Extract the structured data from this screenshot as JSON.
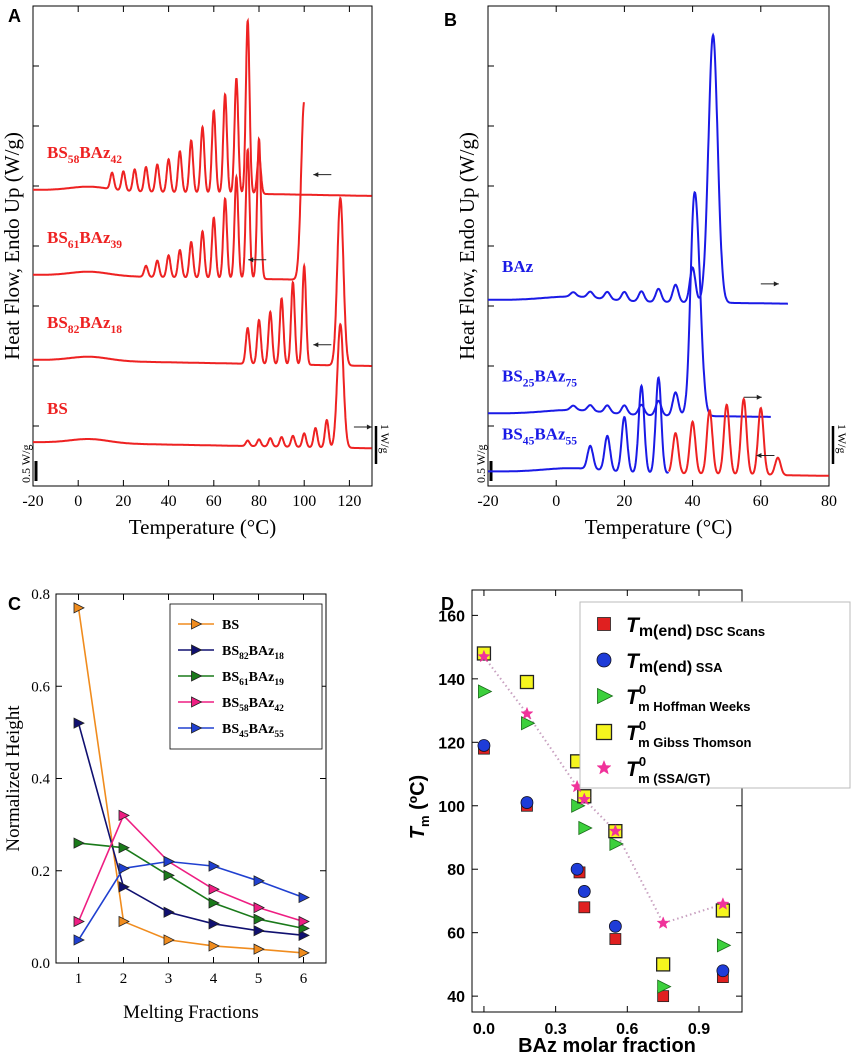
{
  "figure": {
    "panel_labels": [
      "A",
      "B",
      "C",
      "D"
    ]
  },
  "chart_data": [
    {
      "id": "A",
      "type": "line",
      "xlabel": "Temperature (°C)",
      "ylabel": "Heat Flow, Endo Up (W/g)",
      "xlim": [
        -20,
        130
      ],
      "xticks": [
        "-20",
        "0",
        "20",
        "40",
        "60",
        "80",
        "100",
        "120"
      ],
      "scale_left": "0.5 W/g",
      "scale_right": "1 W/g",
      "color": "#ee2222",
      "series": [
        {
          "name": "BS58BAz42",
          "label_main": "BS",
          "label_sub1": "58",
          "label_mid": "BAz",
          "label_sub2": "42",
          "baseline": 10.8,
          "peak_start": 15,
          "peak_step": 5,
          "peaks": [
            0.6,
            0.7,
            0.8,
            0.9,
            1.0,
            1.2,
            1.5,
            1.9,
            2.4,
            3.0,
            3.6,
            4.2,
            6.3,
            1.4
          ],
          "arrow": "left",
          "xmin": -20,
          "xmax": 130
        },
        {
          "name": "BS61BAz39",
          "label_main": "BS",
          "label_sub1": "61",
          "label_mid": "BAz",
          "label_sub2": "39",
          "baseline": 7.7,
          "peak_start": 30,
          "peak_step": 5,
          "peaks": [
            0.4,
            0.6,
            0.8,
            1.0,
            1.3,
            1.7,
            2.2,
            2.9,
            3.7,
            4.7,
            5.1
          ],
          "sharp_x": 100,
          "sharp_h": 6.5,
          "arrow": "left",
          "xmin": -20,
          "xmax": 100
        },
        {
          "name": "BS82BAz18",
          "label_main": "BS",
          "label_sub1": "82",
          "label_mid": "BAz",
          "label_sub2": "18",
          "baseline": 4.6,
          "peak_start": 75,
          "peak_step": 5,
          "peaks": [
            1.3,
            1.6,
            1.9,
            2.4,
            3.0,
            3.6
          ],
          "sharp_x": 116,
          "sharp_h": 6.1,
          "arrow": "left",
          "xmin": -20,
          "xmax": 130
        },
        {
          "name": "BS",
          "label_main": "BS",
          "baseline": 1.6,
          "peak_start": 75,
          "peak_step": 5,
          "peaks": [
            0.2,
            0.25,
            0.3,
            0.35,
            0.4,
            0.5,
            0.7,
            1.0
          ],
          "sharp_x": 116,
          "sharp_h": 4.5,
          "arrow": "right",
          "xmin": -20,
          "xmax": 130
        }
      ]
    },
    {
      "id": "B",
      "type": "line",
      "xlabel": "Temperature (°C)",
      "ylabel": "Heat Flow, Endo Up (W/g)",
      "xlim": [
        -20,
        80
      ],
      "xticks": [
        "-20",
        "0",
        "20",
        "40",
        "60",
        "80"
      ],
      "scale_left": "0.5 W/g",
      "scale_right": "1 W/g",
      "series": [
        {
          "name": "BAz",
          "label_main": "BAz",
          "color": "#1a1ae6",
          "baseline": 6.4,
          "peak_start": 5,
          "peak_step": 5,
          "peaks": [
            0.15,
            0.2,
            0.25,
            0.3,
            0.35,
            0.45,
            0.6,
            1.2
          ],
          "sharp_x": 46,
          "sharp_h": 9.2,
          "arrow": "right",
          "xmin": -20,
          "xmax": 68
        },
        {
          "name": "BS25BAz75",
          "label_main": "BS",
          "label_sub1": "25",
          "label_mid": "BAz",
          "label_sub2": "75",
          "color": "#1a1ae6",
          "baseline": 2.5,
          "peak_start": 5,
          "peak_step": 5,
          "peaks": [
            0.15,
            0.2,
            0.25,
            0.3,
            0.35,
            0.5,
            0.8,
            1.8
          ],
          "sharp_x": 41,
          "sharp_h": 6.6,
          "arrow": "right",
          "xmin": -20,
          "xmax": 63
        },
        {
          "name": "BS45BAz55",
          "label_main": "BS",
          "label_sub1": "45",
          "label_mid": "BAz",
          "label_sub2": "55",
          "color": "#1a1ae6",
          "color2": "#ee2222",
          "split_x": 33,
          "baseline": 0.5,
          "peak_start": 10,
          "peak_step": 5,
          "peaks": [
            0.8,
            1.2,
            1.9,
            3.0,
            3.3,
            1.4,
            1.8,
            2.2,
            2.4,
            2.6,
            2.3,
            0.6
          ],
          "arrow": "left",
          "xmin": -20,
          "xmax": 80
        }
      ]
    },
    {
      "id": "C",
      "type": "line",
      "xlabel": "Melting Fractions",
      "ylabel": "Normalized Height",
      "xlim": [
        0.5,
        6.5
      ],
      "ylim": [
        0,
        0.8
      ],
      "xticks": [
        "1",
        "2",
        "3",
        "4",
        "5",
        "6"
      ],
      "yticks": [
        "0.0",
        "0.2",
        "0.4",
        "0.6",
        "0.8"
      ],
      "x": [
        1,
        2,
        3,
        4,
        5,
        6
      ],
      "series": [
        {
          "name": "BS",
          "label_main": "BS",
          "color": "#f08c1e",
          "values": [
            0.77,
            0.09,
            0.05,
            0.037,
            0.03,
            0.022
          ]
        },
        {
          "name": "BS82BAz18",
          "label_main": "BS",
          "label_sub1": "82",
          "label_mid": "BAz",
          "label_sub2": "18",
          "color": "#101070",
          "values": [
            0.52,
            0.165,
            0.11,
            0.085,
            0.07,
            0.06
          ]
        },
        {
          "name": "BS61BAz19",
          "label_main": "BS",
          "label_sub1": "61",
          "label_mid": "BAz",
          "label_sub2": "19",
          "color": "#1a7a1a",
          "values": [
            0.26,
            0.25,
            0.19,
            0.13,
            0.095,
            0.075
          ]
        },
        {
          "name": "BS58BAz42",
          "label_main": "BS",
          "label_sub1": "58",
          "label_mid": "BAz",
          "label_sub2": "42",
          "color": "#ee1e82",
          "values": [
            0.09,
            0.32,
            0.22,
            0.16,
            0.12,
            0.09
          ]
        },
        {
          "name": "BS45BAz55",
          "label_main": "BS",
          "label_sub1": "45",
          "label_mid": "BAz",
          "label_sub2": "55",
          "color": "#2040d0",
          "values": [
            0.05,
            0.205,
            0.22,
            0.21,
            0.178,
            0.142
          ]
        }
      ]
    },
    {
      "id": "D",
      "type": "scatter",
      "xlabel": "BAz molar fraction",
      "ylabel_main": "T",
      "ylabel_sub": "m",
      "ylabel_unit": " (ºC)",
      "xlim": [
        -0.05,
        1.08
      ],
      "ylim": [
        35,
        168
      ],
      "xticks": [
        "0.0",
        "0.3",
        "0.6",
        "0.9"
      ],
      "yticks": [
        "40",
        "60",
        "80",
        "100",
        "120",
        "140",
        "160"
      ],
      "series": [
        {
          "name": "Tm(end) DSC Scans",
          "lab_main": "T",
          "lab_sub": "m(end)",
          "lab_text": " DSC Scans",
          "marker": "square",
          "color": "#e02020",
          "size": 11,
          "x": [
            0.0,
            0.18,
            0.4,
            0.42,
            0.55,
            0.75,
            1.0
          ],
          "y": [
            118,
            100,
            79,
            68,
            58,
            40,
            46
          ]
        },
        {
          "name": "Tm(end) SSA",
          "lab_main": "T",
          "lab_sub": "m(end)",
          "lab_text": " SSA",
          "marker": "circle",
          "color": "#1e3cd8",
          "size": 12,
          "x": [
            0.0,
            0.18,
            0.39,
            0.42,
            0.55,
            1.0
          ],
          "y": [
            119,
            101,
            80,
            73,
            62,
            48
          ]
        },
        {
          "name": "T0m Hoffman Weeks",
          "lab_main": "T",
          "lab_sup": "0",
          "lab_sub": "m",
          "lab_text": " Hoffman Weeks",
          "marker": "triangle",
          "color": "#3cd03c",
          "size": 13,
          "x": [
            0.0,
            0.18,
            0.39,
            0.42,
            0.55,
            0.75,
            1.0
          ],
          "y": [
            136,
            126,
            100,
            93,
            88,
            43,
            56
          ]
        },
        {
          "name": "T0m Gibss Thomson",
          "lab_main": "T",
          "lab_sup": "0",
          "lab_sub": "m",
          "lab_text": " Gibss Thomson",
          "marker": "bigsquare",
          "color": "#f5f51e",
          "size": 13,
          "x": [
            0.0,
            0.18,
            0.39,
            0.42,
            0.55,
            0.75,
            1.0
          ],
          "y": [
            148,
            139,
            114,
            103,
            92,
            50,
            67
          ]
        },
        {
          "name": "T0m (SSA/GT)",
          "lab_main": "T",
          "lab_sup": "0",
          "lab_sub": "m",
          "lab_text": " (SSA/GT)",
          "marker": "star",
          "color": "#f0329a",
          "size": 12,
          "connect": true,
          "x": [
            0.0,
            0.18,
            0.39,
            0.42,
            0.55,
            0.75,
            1.0
          ],
          "y": [
            147,
            129,
            106,
            102,
            92,
            63,
            69
          ]
        }
      ]
    }
  ]
}
